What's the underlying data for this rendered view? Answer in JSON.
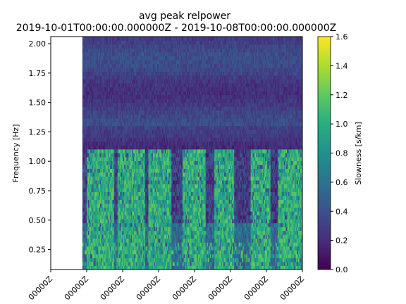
{
  "chart_data": {
    "type": "heatmap",
    "title": "avg peak relpower",
    "subtitle": "2019-10-01T00:00:00.000000Z - 2019-10-08T00:00:00.000000Z",
    "ylabel": "Frequency [Hz]",
    "xlabel": "",
    "x_tick_labels": [
      "00000Z",
      "00000Z",
      "00000Z",
      "00000Z",
      "00000Z",
      "00000Z",
      "00000Z",
      "00000Z"
    ],
    "y_ticks": [
      0.25,
      0.5,
      0.75,
      1.0,
      1.25,
      1.5,
      1.75,
      2.0
    ],
    "y_tick_labels": [
      "0.25",
      "0.50",
      "0.75",
      "1.00",
      "1.25",
      "1.50",
      "1.75",
      "2.00"
    ],
    "ylim": [
      0.08,
      2.06
    ],
    "xlim_days": [
      0,
      7
    ],
    "data_start_day": 0.88,
    "grid": false,
    "colormap": "viridis",
    "colorbar": {
      "label": "Slowness [s/km]",
      "range": [
        0.0,
        1.6
      ],
      "ticks": [
        0.0,
        0.2,
        0.4,
        0.6,
        0.8,
        1.0,
        1.2,
        1.4,
        1.6
      ],
      "tick_labels": [
        "0.0",
        "0.2",
        "0.4",
        "0.6",
        "0.8",
        "1.0",
        "1.2",
        "1.4",
        "1.6"
      ]
    },
    "daily_high_bands": [
      {
        "start_day": 1.0,
        "end_day": 1.75
      },
      {
        "start_day": 1.85,
        "end_day": 2.6
      },
      {
        "start_day": 2.7,
        "end_day": 3.35
      },
      {
        "start_day": 3.65,
        "end_day": 4.3
      },
      {
        "start_day": 4.55,
        "end_day": 5.1
      },
      {
        "start_day": 5.55,
        "end_day": 6.1
      },
      {
        "start_day": 6.3,
        "end_day": 7.0
      }
    ],
    "high_band_freq_max": 1.1,
    "high_band_value": 1.0,
    "low_freq_background_value": 0.3,
    "high_freq_background_value": 0.3
  }
}
